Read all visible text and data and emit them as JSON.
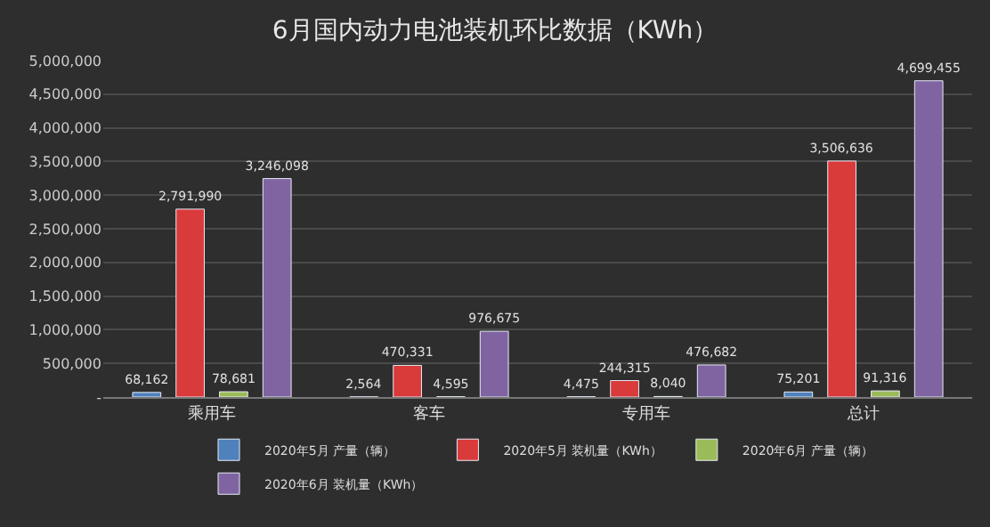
{
  "chart_data": {
    "type": "bar",
    "title": "6月国内动力电池装机环比数据（KWh）",
    "categories": [
      "乘用车",
      "客车",
      "专用车",
      "总计"
    ],
    "series": [
      {
        "name": "2020年5月 产量（辆）",
        "color": "#4f81bd",
        "values": [
          68162,
          2564,
          4475,
          75201
        ],
        "value_labels": [
          "68,162",
          "2,564",
          "4,475",
          "75,201"
        ]
      },
      {
        "name": "2020年5月 装机量（KWh）",
        "color": "#d93a3a",
        "values": [
          2791990,
          470331,
          244315,
          3506636
        ],
        "value_labels": [
          "2,791,990",
          "470,331",
          "244,315",
          "3,506,636"
        ]
      },
      {
        "name": "2020年6月 产量（辆）",
        "color": "#9bbb59",
        "values": [
          78681,
          4595,
          8040,
          91316
        ],
        "value_labels": [
          "78,681",
          "4,595",
          "8,040",
          "91,316"
        ]
      },
      {
        "name": "2020年6月 装机量（KWh）",
        "color": "#8064a2",
        "values": [
          3246098,
          976675,
          476682,
          4699455
        ],
        "value_labels": [
          "3,246,098",
          "976,675",
          "476,682",
          "4,699,455"
        ]
      }
    ],
    "ylim": [
      0,
      5000000
    ],
    "yticks": [
      {
        "value": 0,
        "label": "-"
      },
      {
        "value": 500000,
        "label": "500,000"
      },
      {
        "value": 1000000,
        "label": "1,000,000"
      },
      {
        "value": 1500000,
        "label": "1,500,000"
      },
      {
        "value": 2000000,
        "label": "2,000,000"
      },
      {
        "value": 2500000,
        "label": "2,500,000"
      },
      {
        "value": 3000000,
        "label": "3,000,000"
      },
      {
        "value": 3500000,
        "label": "3,500,000"
      },
      {
        "value": 4000000,
        "label": "4,000,000"
      },
      {
        "value": 4500000,
        "label": "4,500,000"
      },
      {
        "value": 5000000,
        "label": "5,000,000"
      }
    ],
    "grid": "y",
    "legend": "bottom"
  }
}
